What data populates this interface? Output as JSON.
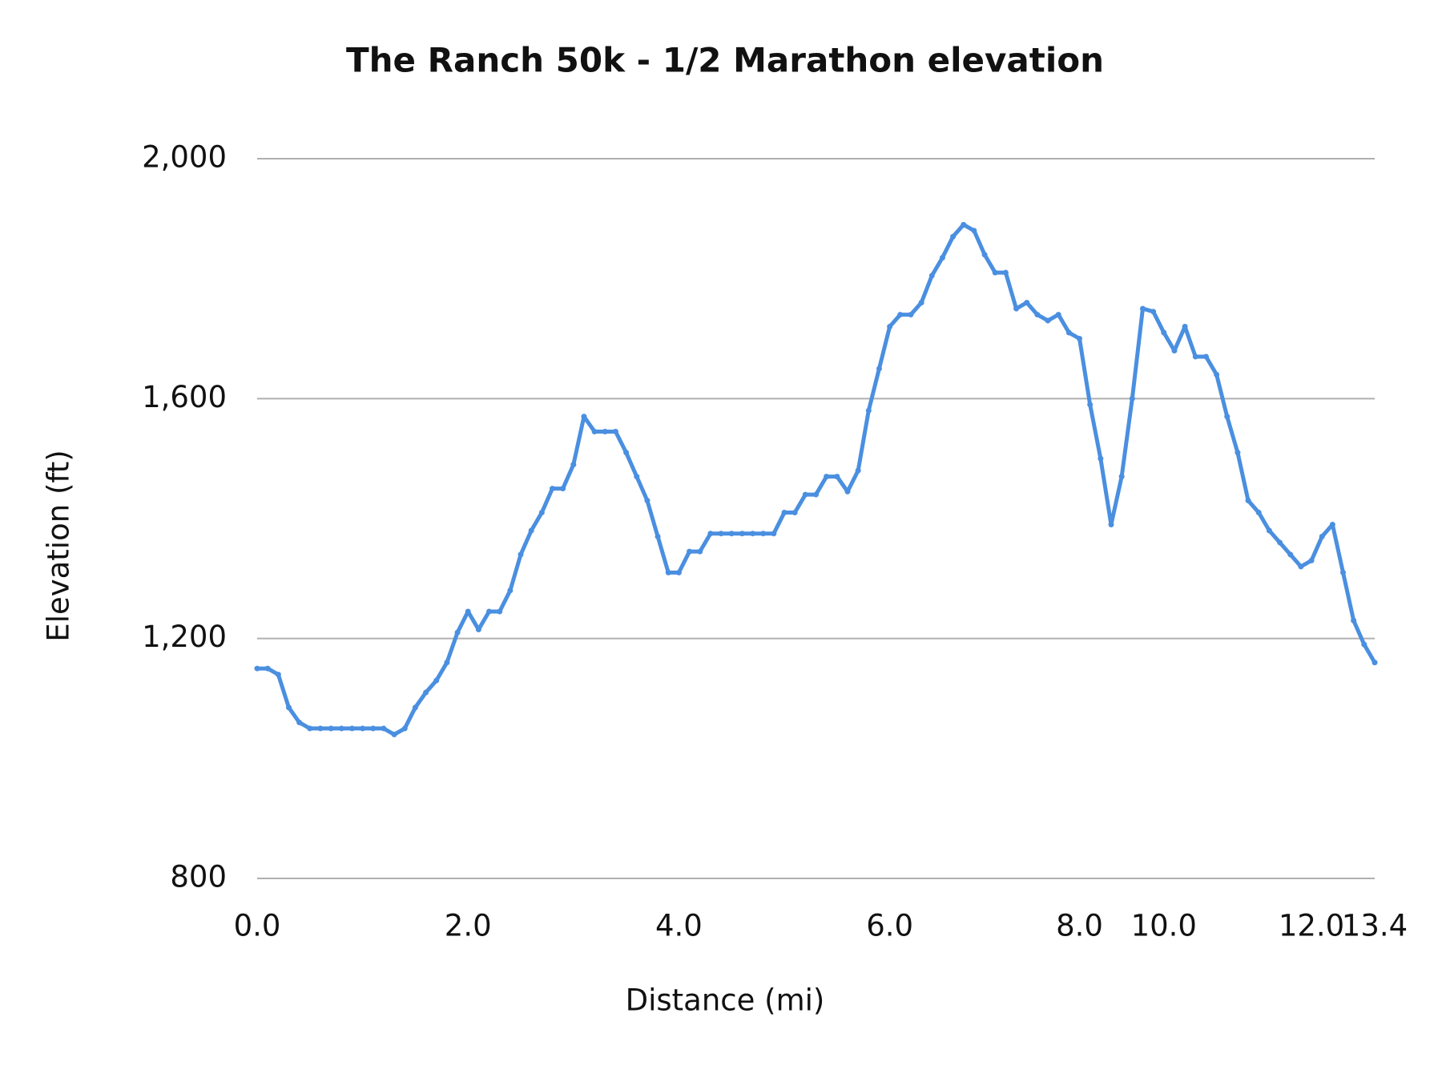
{
  "chart_data": {
    "type": "line",
    "title": "The Ranch 50k - 1/2 Marathon elevation",
    "x_label": "Distance (mi)",
    "y_label": "Elevation (ft)",
    "categories": [
      "0.0",
      null,
      null,
      null,
      null,
      null,
      null,
      null,
      null,
      null,
      null,
      null,
      null,
      null,
      null,
      null,
      null,
      null,
      null,
      null,
      "2.0",
      null,
      null,
      null,
      null,
      null,
      null,
      null,
      null,
      null,
      null,
      null,
      null,
      null,
      null,
      null,
      null,
      null,
      null,
      null,
      "4.0",
      null,
      null,
      null,
      null,
      null,
      null,
      null,
      null,
      null,
      null,
      null,
      null,
      null,
      null,
      null,
      null,
      null,
      null,
      null,
      "6.0",
      null,
      null,
      null,
      null,
      null,
      null,
      null,
      null,
      null,
      null,
      null,
      null,
      null,
      null,
      null,
      null,
      null,
      "8.0",
      null,
      null,
      null,
      null,
      null,
      null,
      null,
      "10.0",
      null,
      null,
      null,
      null,
      null,
      null,
      null,
      null,
      null,
      null,
      null,
      null,
      null,
      "12.0",
      null,
      null,
      null,
      null,
      null,
      "13.4"
    ],
    "series": [
      {
        "name": "Elevation",
        "color": "#4a8fe0",
        "values": [
          1150,
          1150,
          1140,
          1085,
          1060,
          1050,
          1050,
          1050,
          1050,
          1050,
          1050,
          1050,
          1050,
          1040,
          1050,
          1085,
          1110,
          1130,
          1160,
          1210,
          1245,
          1215,
          1245,
          1245,
          1280,
          1340,
          1380,
          1410,
          1450,
          1450,
          1490,
          1570,
          1545,
          1545,
          1545,
          1510,
          1470,
          1430,
          1370,
          1310,
          1310,
          1345,
          1345,
          1375,
          1375,
          1375,
          1375,
          1375,
          1375,
          1375,
          1410,
          1410,
          1440,
          1440,
          1470,
          1470,
          1445,
          1480,
          1580,
          1650,
          1720,
          1740,
          1740,
          1760,
          1805,
          1835,
          1870,
          1890,
          1880,
          1840,
          1810,
          1810,
          1750,
          1760,
          1740,
          1730,
          1740,
          1710,
          1700,
          1590,
          1500,
          1390,
          1470,
          1600,
          1750,
          1745,
          1710,
          1680,
          1720,
          1670,
          1670,
          1640,
          1570,
          1510,
          1430,
          1410,
          1380,
          1360,
          1340,
          1320,
          1330,
          1370,
          1390,
          1310,
          1230,
          1190,
          1160
        ]
      }
    ],
    "ylim": [
      800,
      2000
    ],
    "yticks": [
      {
        "value": 800,
        "label": "800"
      },
      {
        "value": 1200,
        "label": "1,200"
      },
      {
        "value": 1600,
        "label": "1,600"
      },
      {
        "value": 2000,
        "label": "2,000"
      }
    ],
    "grid": true
  }
}
